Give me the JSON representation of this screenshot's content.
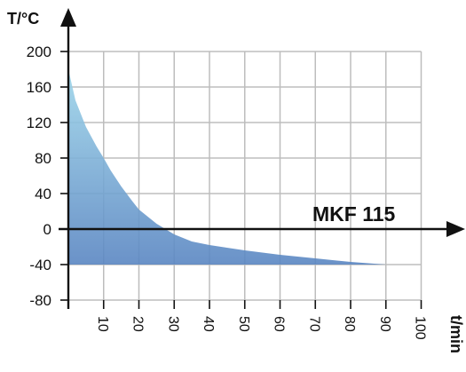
{
  "chart_data": {
    "type": "area",
    "title": "",
    "xlabel": "t/min",
    "ylabel": "T/°C",
    "xlim": [
      0,
      100
    ],
    "ylim": [
      -80,
      200
    ],
    "x_ticks": [
      10,
      20,
      30,
      40,
      50,
      60,
      70,
      80,
      90,
      100
    ],
    "y_ticks": [
      200,
      160,
      120,
      80,
      40,
      0,
      -40,
      -80
    ],
    "grid": true,
    "baseline": -40,
    "colors": {
      "top": "#9ed6ea",
      "bottom": "#5a86c2",
      "grid": "#bdbdbd",
      "axis": "#111111"
    },
    "series": [
      {
        "name": "MKF 115",
        "x": [
          0,
          2,
          5,
          8,
          10,
          12,
          15,
          18,
          20,
          25,
          30,
          35,
          40,
          50,
          60,
          70,
          80,
          90
        ],
        "y": [
          180,
          145,
          115,
          93,
          80,
          66,
          48,
          32,
          22,
          6,
          -6,
          -14,
          -18,
          -24,
          -29,
          -33,
          -37,
          -40
        ]
      }
    ]
  }
}
